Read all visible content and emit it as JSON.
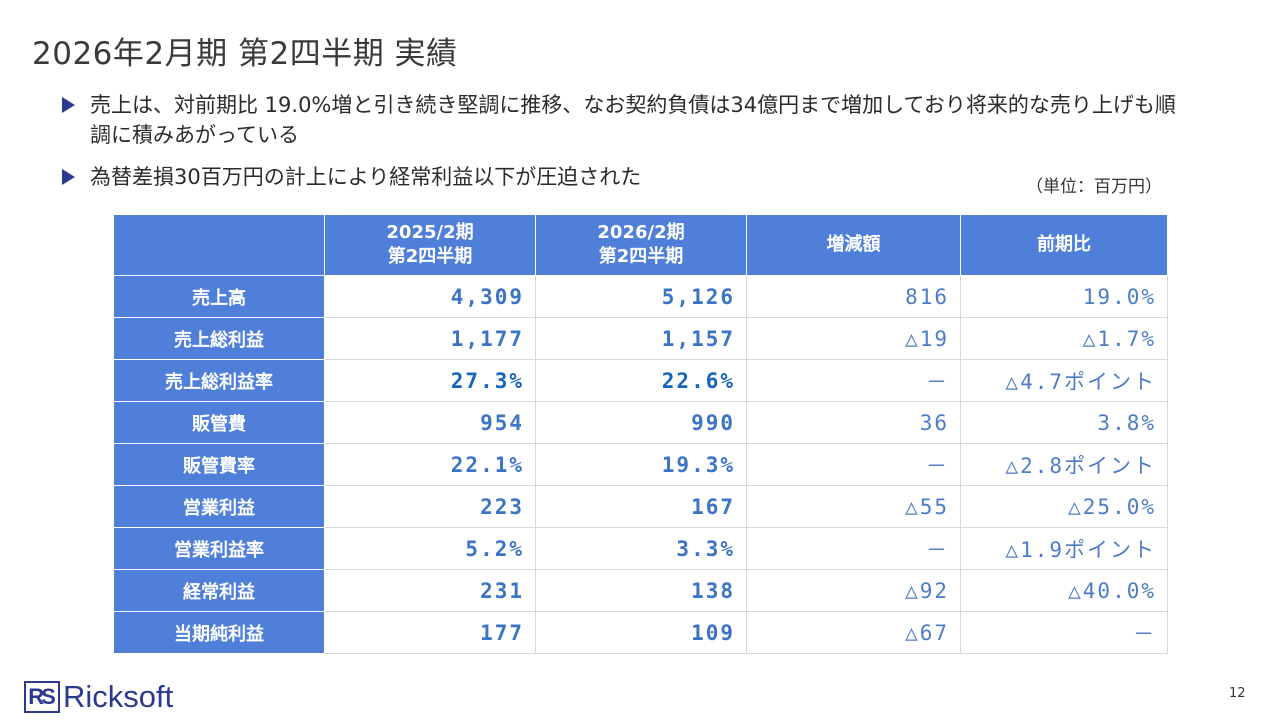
{
  "title": "2026年2月期 第2四半期 実績",
  "bullets": [
    "売上は、対前期比 19.0%増と引き続き堅調に推移、なお契約負債は34億円まで増加しており将来的な売り上げも順調に積みあがっている",
    "為替差損30百万円の計上により経常利益以下が圧迫された"
  ],
  "unit_note": "（単位：百万円）",
  "table": {
    "headers": {
      "prev_line1": "2025/2期",
      "prev_line2": "第2四半期",
      "curr_line1": "2026/2期",
      "curr_line2": "第2四半期",
      "diff": "増減額",
      "yoy": "前期比"
    },
    "rows": [
      {
        "label": "売上高",
        "prev": "4,309",
        "curr": "5,126",
        "diff": "816",
        "yoy": "19.0%"
      },
      {
        "label": "売上総利益",
        "prev": "1,177",
        "curr": "1,157",
        "diff": "△19",
        "yoy": "△1.7%"
      },
      {
        "label": "売上総利益率",
        "prev": "27.3%",
        "curr": "22.6%",
        "diff": "－",
        "yoy": "△4.7ポイント"
      },
      {
        "label": "販管費",
        "prev": "954",
        "curr": "990",
        "diff": "36",
        "yoy": "3.8%"
      },
      {
        "label": "販管費率",
        "prev": "22.1%",
        "curr": "19.3%",
        "diff": "－",
        "yoy": "△2.8ポイント"
      },
      {
        "label": "営業利益",
        "prev": "223",
        "curr": "167",
        "diff": "△55",
        "yoy": "△25.0%"
      },
      {
        "label": "営業利益率",
        "prev": "5.2%",
        "curr": "3.3%",
        "diff": "－",
        "yoy": "△1.9ポイント"
      },
      {
        "label": "経常利益",
        "prev": "231",
        "curr": "138",
        "diff": "△92",
        "yoy": "△40.0%"
      },
      {
        "label": "当期純利益",
        "prev": "177",
        "curr": "109",
        "diff": "△67",
        "yoy": "－"
      }
    ]
  },
  "logo": {
    "mark": "RS",
    "name": "Ricksoft"
  },
  "page_number": "12",
  "colors": {
    "header_bg": "#4f7fd9",
    "value_blue": "#3b74c6",
    "bullet_navy": "#2b3a8c"
  }
}
